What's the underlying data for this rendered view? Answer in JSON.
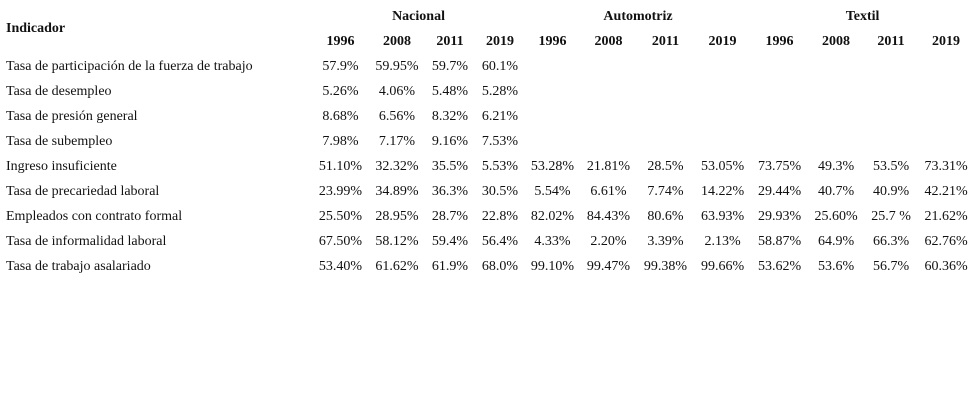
{
  "header": {
    "indicator": "Indicador",
    "groups": [
      {
        "name": "Nacional",
        "years": [
          "1996",
          "2008",
          "2011",
          "2019"
        ]
      },
      {
        "name": "Automotriz",
        "years": [
          "1996",
          "2008",
          "2011",
          "2019"
        ]
      },
      {
        "name": "Textil",
        "years": [
          "1996",
          "2008",
          "2011",
          "2019"
        ]
      }
    ]
  },
  "table": {
    "rows": [
      {
        "label": "Tasa de participación de la fuerza de trabajo",
        "cells": [
          "57.9%",
          "59.95%",
          "59.7%",
          "60.1%"
        ]
      },
      {
        "label": "Tasa de desempleo",
        "cells": [
          "5.26%",
          "4.06%",
          "5.48%",
          "5.28%"
        ]
      },
      {
        "label": "Tasa de presión general",
        "cells": [
          "8.68%",
          "6.56%",
          "8.32%",
          "6.21%"
        ]
      },
      {
        "label": "Tasa de subempleo",
        "cells": [
          "7.98%",
          "7.17%",
          "9.16%",
          "7.53%"
        ]
      },
      {
        "label": "Ingreso insuficiente",
        "cells": [
          "51.10%",
          "32.32%",
          "35.5%",
          "5.53%",
          "53.28%",
          "21.81%",
          "28.5%",
          "53.05%",
          "73.75%",
          "49.3%",
          "53.5%",
          "73.31%"
        ]
      },
      {
        "label": "Tasa de precariedad laboral",
        "cells": [
          "23.99%",
          "34.89%",
          "36.3%",
          "30.5%",
          "5.54%",
          "6.61%",
          "7.74%",
          "14.22%",
          "29.44%",
          "40.7%",
          "40.9%",
          "42.21%"
        ]
      },
      {
        "label": "Empleados con contrato formal",
        "cells": [
          "25.50%",
          "28.95%",
          "28.7%",
          "22.8%",
          "82.02%",
          "84.43%",
          "80.6%",
          "63.93%",
          "29.93%",
          "25.60%",
          "25.7 %",
          "21.62%"
        ]
      },
      {
        "label": "Tasa de informalidad laboral",
        "cells": [
          "67.50%",
          "58.12%",
          "59.4%",
          "56.4%",
          "4.33%",
          "2.20%",
          "3.39%",
          "2.13%",
          "58.87%",
          "64.9%",
          "66.3%",
          "62.76%"
        ]
      },
      {
        "label": "Tasa de trabajo asalariado",
        "cells": [
          "53.40%",
          "61.62%",
          "61.9%",
          "68.0%",
          "99.10%",
          "99.47%",
          "99.38%",
          "99.66%",
          "53.62%",
          "53.6%",
          "56.7%",
          "60.36%"
        ]
      }
    ]
  }
}
